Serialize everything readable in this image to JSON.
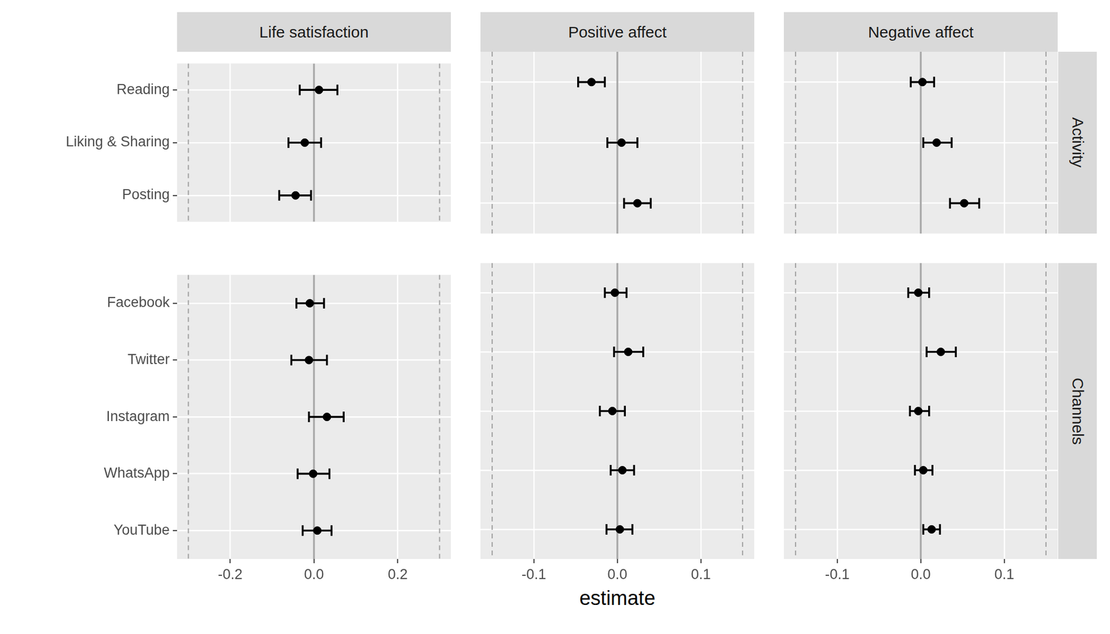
{
  "chart_data": {
    "type": "scatter",
    "x_label": "estimate",
    "color": "#000000",
    "marker": "circle",
    "grid": true,
    "columns": [
      {
        "title": "Life satisfaction",
        "xlim": [
          -0.327,
          0.327
        ],
        "xticks": [
          -0.2,
          {
            "value": 0,
            "label": "0.0"
          },
          0.2
        ],
        "reference_lines": [
          {
            "value": -0.3,
            "line_style": "dashed"
          },
          {
            "value": 0,
            "line_style": "solid"
          },
          {
            "value": 0.3,
            "line_style": "dashed"
          }
        ]
      },
      {
        "title": "Positive affect",
        "xlim": [
          -0.164,
          0.164
        ],
        "xticks": [
          -0.1,
          {
            "value": 0,
            "label": "0.0"
          },
          0.1
        ],
        "reference_lines": [
          {
            "value": -0.15,
            "line_style": "dashed"
          },
          {
            "value": 0,
            "line_style": "solid"
          },
          {
            "value": 0.15,
            "line_style": "dashed"
          }
        ]
      },
      {
        "title": "Negative affect",
        "xlim": [
          -0.164,
          0.164
        ],
        "xticks": [
          -0.1,
          {
            "value": 0,
            "label": "0.0"
          },
          0.1
        ],
        "reference_lines": [
          {
            "value": -0.15,
            "line_style": "dashed"
          },
          {
            "value": 0,
            "line_style": "solid"
          },
          {
            "value": 0.15,
            "line_style": "dashed"
          }
        ]
      }
    ],
    "rows": [
      {
        "title": "Activity",
        "categories": [
          "Reading",
          "Liking & Sharing",
          "Posting"
        ]
      },
      {
        "title": "Channels",
        "categories": [
          "Facebook",
          "Twitter",
          "Instagram",
          "WhatsApp",
          "YouTube"
        ]
      }
    ],
    "panels": [
      [
        {
          "values": [
            0.012,
            -0.022,
            -0.044
          ],
          "ci_low": [
            -0.034,
            -0.061,
            -0.083
          ],
          "ci_high": [
            0.056,
            0.017,
            -0.007
          ]
        },
        {
          "values": [
            -0.031,
            0.005,
            0.024
          ],
          "ci_low": [
            -0.047,
            -0.012,
            0.008
          ],
          "ci_high": [
            -0.015,
            0.024,
            0.04
          ]
        },
        {
          "values": [
            0.002,
            0.019,
            0.052
          ],
          "ci_low": [
            -0.012,
            0.003,
            0.035
          ],
          "ci_high": [
            0.016,
            0.037,
            0.07
          ]
        }
      ],
      [
        {
          "values": [
            -0.01,
            -0.012,
            0.031,
            -0.002,
            0.008
          ],
          "ci_low": [
            -0.042,
            -0.054,
            -0.012,
            -0.039,
            -0.027
          ],
          "ci_high": [
            0.024,
            0.031,
            0.071,
            0.037,
            0.042
          ]
        },
        {
          "values": [
            -0.003,
            0.013,
            -0.006,
            0.006,
            0.003
          ],
          "ci_low": [
            -0.015,
            -0.004,
            -0.021,
            -0.008,
            -0.013
          ],
          "ci_high": [
            0.011,
            0.031,
            0.009,
            0.02,
            0.018
          ]
        },
        {
          "values": [
            -0.003,
            0.024,
            -0.003,
            0.003,
            0.013
          ],
          "ci_low": [
            -0.015,
            0.007,
            -0.013,
            -0.007,
            0.003
          ],
          "ci_high": [
            0.01,
            0.042,
            0.01,
            0.014,
            0.023
          ]
        }
      ]
    ]
  }
}
